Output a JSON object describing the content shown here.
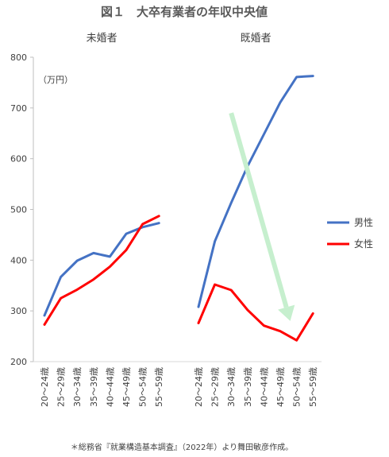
{
  "chart_data": {
    "type": "line",
    "title": "図１　大卒有業者の年収中央値",
    "unit_label": "（万円）",
    "source_note": "＊総務省『就業構造基本調査』（2022年）より舞田敏彦作成。",
    "ylim": [
      200,
      800
    ],
    "yticks": [
      200,
      300,
      400,
      500,
      600,
      700,
      800
    ],
    "grid": false,
    "legend_position": "right",
    "categories": [
      "20～24歳",
      "25～29歳",
      "30～34歳",
      "35～39歳",
      "40～44歳",
      "45～49歳",
      "50～54歳",
      "55～59歳"
    ],
    "colors": {
      "male": "#4472C4",
      "female": "#FF0000",
      "arrow": "#C6EFCE"
    },
    "panels": [
      {
        "name": "未婚者",
        "series": [
          {
            "name": "男性",
            "values": [
              291,
              367,
              399,
              414,
              407,
              452,
              465,
              473
            ]
          },
          {
            "name": "女性",
            "values": [
              273,
              325,
              342,
              362,
              387,
              420,
              471,
              487
            ]
          }
        ]
      },
      {
        "name": "既婚者",
        "series": [
          {
            "name": "男性",
            "values": [
              308,
              437,
              513,
              585,
              648,
              711,
              761,
              763
            ]
          },
          {
            "name": "女性",
            "values": [
              276,
              352,
              341,
              302,
              271,
              260,
              242,
              295
            ]
          }
        ]
      }
    ],
    "annotation": {
      "type": "arrow",
      "from": [
        "30～34歳",
        690
      ],
      "to": [
        "50～54歳",
        280
      ]
    }
  }
}
